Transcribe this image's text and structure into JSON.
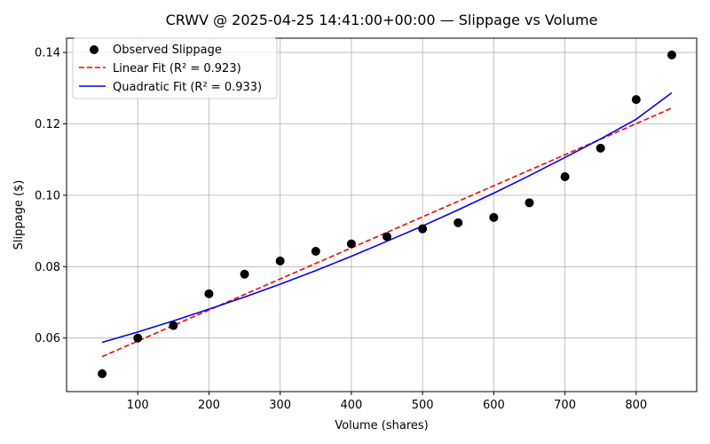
{
  "chart_data": {
    "type": "scatter",
    "title": "CRWV @ 2025-04-25 14:41:00+00:00 — Slippage vs Volume",
    "xlabel": "Volume (shares)",
    "ylabel": "Slippage ($)",
    "xlim": [
      0,
      885
    ],
    "ylim": [
      0.045,
      0.144
    ],
    "x_ticks": [
      100,
      200,
      300,
      400,
      500,
      600,
      700,
      800
    ],
    "y_ticks": [
      0.06,
      0.08,
      0.1,
      0.12,
      0.14
    ],
    "x_tick_labels": [
      "100",
      "200",
      "300",
      "400",
      "500",
      "600",
      "700",
      "800"
    ],
    "y_tick_labels": [
      "0.06",
      "0.08",
      "0.10",
      "0.12",
      "0.14"
    ],
    "grid": true,
    "legend_position": "top-left",
    "series": [
      {
        "name": "Observed Slippage",
        "kind": "scatter",
        "color": "#000000",
        "x": [
          50,
          100,
          150,
          200,
          250,
          300,
          350,
          400,
          450,
          500,
          550,
          600,
          650,
          700,
          750,
          800,
          850
        ],
        "y": [
          0.05,
          0.06,
          0.0635,
          0.0724,
          0.0779,
          0.0816,
          0.0843,
          0.0864,
          0.0884,
          0.0906,
          0.0923,
          0.0938,
          0.0979,
          0.1052,
          0.1132,
          0.1268,
          0.1393
        ]
      },
      {
        "name": "Linear Fit (R² = 0.923)",
        "kind": "line",
        "style": "dashed",
        "color": "#ff0000",
        "x": [
          50,
          850
        ],
        "y": [
          0.0548,
          0.1244
        ]
      },
      {
        "name": "Quadratic Fit (R² = 0.933)",
        "kind": "line",
        "style": "solid",
        "color": "#0000ff",
        "x": [
          50,
          100,
          150,
          200,
          250,
          300,
          350,
          400,
          450,
          500,
          550,
          600,
          650,
          700,
          750,
          800,
          850
        ],
        "y": [
          0.0588,
          0.0617,
          0.0648,
          0.0681,
          0.0715,
          0.0751,
          0.0789,
          0.0829,
          0.0871,
          0.0914,
          0.0959,
          0.1006,
          0.1055,
          0.1106,
          0.1158,
          0.1213,
          0.1287
        ]
      }
    ]
  }
}
